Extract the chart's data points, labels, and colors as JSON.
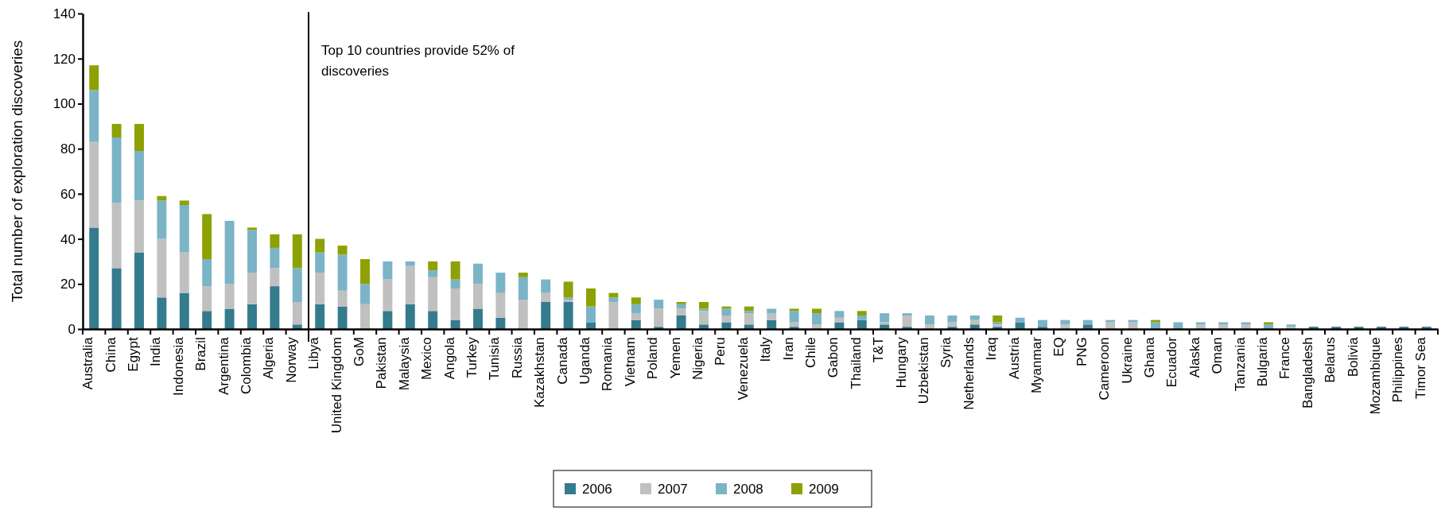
{
  "chart_data": {
    "type": "bar",
    "stacked": true,
    "ylabel": "Total number of exploration discoveries",
    "ylim": [
      0,
      140
    ],
    "yticks": [
      0,
      20,
      40,
      60,
      80,
      100,
      120,
      140
    ],
    "grid": false,
    "legend": "bottom",
    "categories": [
      "Australia",
      "China",
      "Egypt",
      "India",
      "Indonesia",
      "Brazil",
      "Argentina",
      "Colombia",
      "Algeria",
      "Norway",
      "Libya",
      "United Kingdom",
      "GoM",
      "Pakistan",
      "Malaysia",
      "Mexico",
      "Angola",
      "Turkey",
      "Tunisia",
      "Russia",
      "Kazakhstan",
      "Canada",
      "Uganda",
      "Romania",
      "Vietnam",
      "Poland",
      "Yemen",
      "Nigeria",
      "Peru",
      "Venezuela",
      "Italy",
      "Iran",
      "Chile",
      "Gabon",
      "Thailand",
      "T&T",
      "Hungary",
      "Uzbekistan",
      "Syria",
      "Netherlands",
      "Iraq",
      "Austria",
      "Myanmar",
      "EQ",
      "PNG",
      "Cameroon",
      "Ukraine",
      "Ghana",
      "Ecuador",
      "Alaska",
      "Oman",
      "Tanzania",
      "Bulgaria",
      "France",
      "Bangladesh",
      "Belarus",
      "Bolivia",
      "Mozambique",
      "Philippines",
      "Timor Sea"
    ],
    "series": [
      {
        "name": "2006",
        "color": "#347b8c",
        "values": [
          45,
          27,
          34,
          14,
          16,
          8,
          9,
          11,
          19,
          2,
          11,
          10,
          0,
          8,
          11,
          8,
          4,
          9,
          5,
          0,
          12,
          12,
          3,
          0,
          4,
          1,
          6,
          2,
          3,
          2,
          4,
          1,
          0,
          3,
          4,
          2,
          1,
          0,
          1,
          2,
          1,
          3,
          1,
          0,
          2,
          0,
          0,
          0,
          0,
          0,
          0,
          0,
          0,
          0,
          1,
          1,
          1,
          1,
          1,
          1
        ]
      },
      {
        "name": "2007",
        "color": "#c0c0c0",
        "values": [
          38,
          29,
          23,
          26,
          18,
          11,
          11,
          14,
          8,
          10,
          14,
          7,
          11,
          14,
          17,
          15,
          14,
          11,
          11,
          13,
          4,
          1,
          0,
          12,
          3,
          8,
          3,
          6,
          3,
          5,
          3,
          2,
          2,
          2,
          0,
          1,
          5,
          2,
          2,
          2,
          1,
          0,
          0,
          2,
          0,
          3,
          3,
          0,
          0,
          2,
          2,
          2,
          0,
          1,
          0,
          0,
          0,
          0,
          0,
          0
        ]
      },
      {
        "name": "2008",
        "color": "#7ab4c6",
        "values": [
          23,
          29,
          22,
          17,
          21,
          12,
          28,
          19,
          9,
          15,
          9,
          16,
          9,
          8,
          2,
          3,
          4,
          9,
          9,
          10,
          6,
          1,
          7,
          2,
          4,
          4,
          2,
          1,
          3,
          1,
          2,
          5,
          5,
          3,
          2,
          4,
          1,
          4,
          3,
          2,
          1,
          2,
          3,
          2,
          2,
          1,
          1,
          3,
          3,
          1,
          1,
          1,
          2,
          1,
          0,
          0,
          0,
          0,
          0,
          0
        ]
      },
      {
        "name": "2009",
        "color": "#8da103",
        "values": [
          11,
          6,
          12,
          2,
          2,
          20,
          0,
          1,
          6,
          15,
          6,
          4,
          11,
          0,
          0,
          4,
          8,
          0,
          0,
          2,
          0,
          7,
          8,
          2,
          3,
          0,
          1,
          3,
          1,
          2,
          0,
          1,
          2,
          0,
          2,
          0,
          0,
          0,
          0,
          0,
          3,
          0,
          0,
          0,
          0,
          0,
          0,
          1,
          0,
          0,
          0,
          0,
          1,
          0,
          0,
          0,
          0,
          0,
          0,
          0
        ]
      }
    ],
    "annotations": [
      "Top 10 countries provide 52% of discoveries"
    ]
  }
}
